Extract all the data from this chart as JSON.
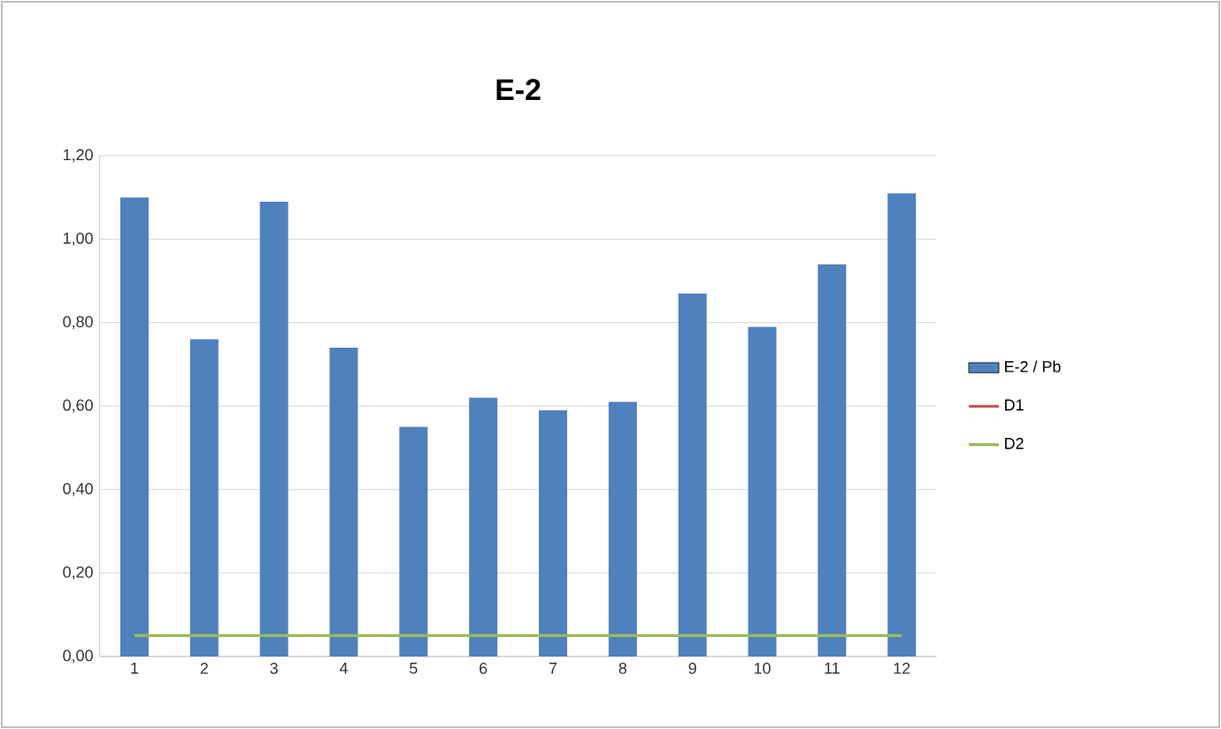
{
  "chart_data": {
    "type": "bar",
    "title": "E-2",
    "categories": [
      "1",
      "2",
      "3",
      "4",
      "5",
      "6",
      "7",
      "8",
      "9",
      "10",
      "11",
      "12"
    ],
    "series": [
      {
        "name": "E-2 / Pb",
        "color": "#4f81bd",
        "values": [
          1.1,
          0.76,
          1.09,
          0.74,
          0.55,
          0.62,
          0.59,
          0.61,
          0.87,
          0.79,
          0.94,
          1.11
        ]
      },
      {
        "name": "D1",
        "type": "line",
        "color": "#c0504d",
        "values": [
          null,
          null,
          null,
          null,
          null,
          null,
          null,
          null,
          null,
          null,
          null,
          null
        ]
      },
      {
        "name": "D2",
        "type": "line",
        "color": "#9bbb59",
        "values": [
          0.05,
          0.05,
          0.05,
          0.05,
          0.05,
          0.05,
          0.05,
          0.05,
          0.05,
          0.05,
          0.05,
          0.05
        ]
      }
    ],
    "ylim": [
      0,
      1.2
    ],
    "yticks": [
      {
        "value": 0,
        "label": "0,00"
      },
      {
        "value": 0.2,
        "label": "0,20"
      },
      {
        "value": 0.4,
        "label": "0,40"
      },
      {
        "value": 0.6,
        "label": "0,60"
      },
      {
        "value": 0.8,
        "label": "0,80"
      },
      {
        "value": 1.0,
        "label": "1,00"
      },
      {
        "value": 1.2,
        "label": "1,20"
      }
    ],
    "grid": "y",
    "legend": "right"
  }
}
